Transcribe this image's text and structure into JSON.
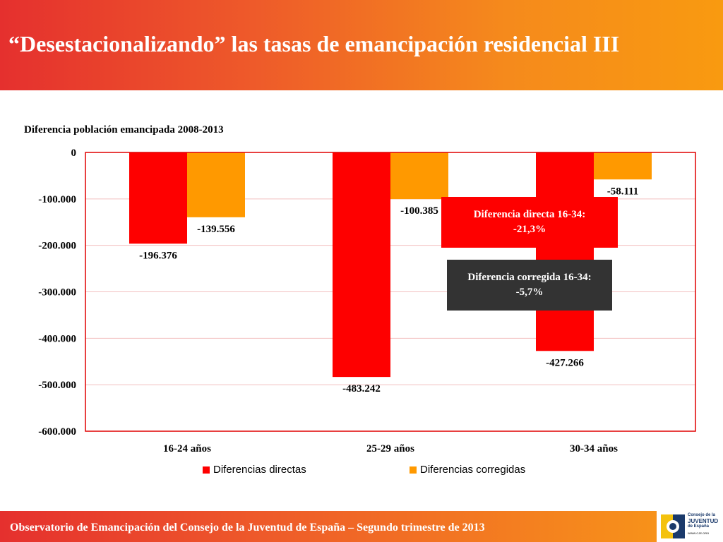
{
  "slide": {
    "title": "“Desestacionalizando” las tasas de emancipación residencial III",
    "footer_text": "Observatorio de Emancipación del Consejo de la Juventud de España – Segundo trimestre de 2013",
    "logo": {
      "line1": "Consejo de la",
      "line2": "JUVENTUD",
      "line3": "de España",
      "url": "WWW.CJE.ORG"
    }
  },
  "callouts": {
    "direct": {
      "line1": "Diferencia directa 16-34:",
      "line2": "-21,3%"
    },
    "corrected": {
      "line1": "Diferencia corregida 16-34:",
      "line2": "-5,7%"
    }
  },
  "colors": {
    "direct": "#fe0000",
    "corrected": "#ff9900",
    "plot_border": "#e00000",
    "gridline": "#f2c0c0"
  },
  "chart_data": {
    "type": "bar",
    "title": "Diferencia población emancipada 2008-2013",
    "categories": [
      "16-24 años",
      "25-29 años",
      "30-34 años"
    ],
    "series": [
      {
        "name": "Diferencias directas",
        "values": [
          -196376,
          -483242,
          -427266
        ],
        "labels": [
          "-196.376",
          "-483.242",
          "-427.266"
        ]
      },
      {
        "name": "Diferencias corregidas",
        "values": [
          -139556,
          -100385,
          -58111
        ],
        "labels": [
          "-139.556",
          "-100.385",
          "-58.111"
        ]
      }
    ],
    "ylim": [
      -600000,
      0
    ],
    "yticks": [
      0,
      -100000,
      -200000,
      -300000,
      -400000,
      -500000,
      -600000
    ],
    "ytick_labels": [
      "0",
      "-100.000",
      "-200.000",
      "-300.000",
      "-400.000",
      "-500.000",
      "-600.000"
    ],
    "grid": true,
    "legend_position": "bottom"
  }
}
